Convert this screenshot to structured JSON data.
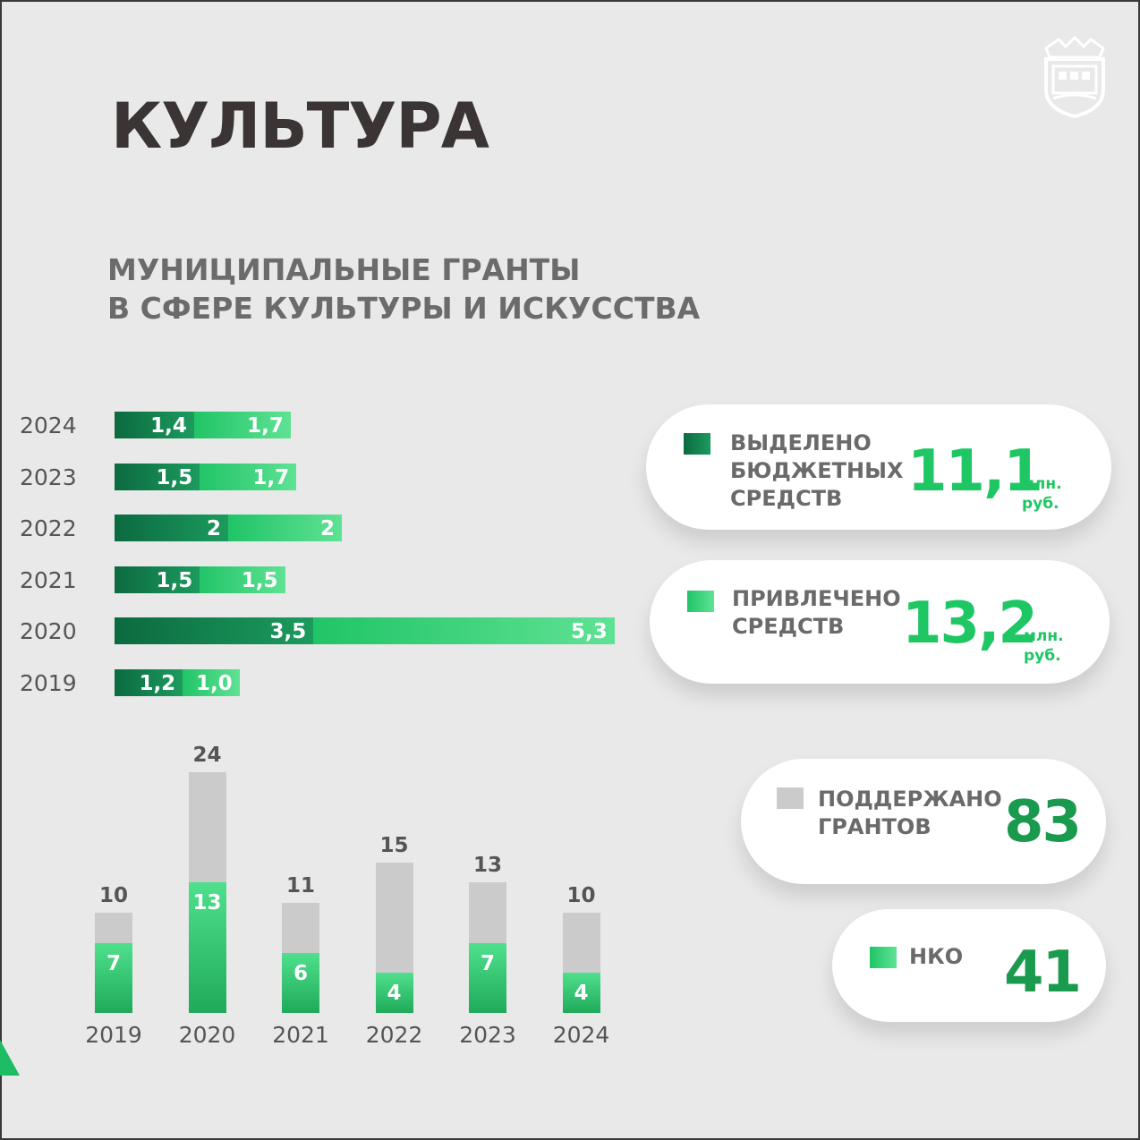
{
  "title": "КУЛЬТУРА",
  "subtitle_line1": "МУНИЦИПАЛЬНЫЕ ГРАНТЫ",
  "subtitle_line2": "В СФЕРЕ КУЛЬТУРЫ И ИСКУССТВА",
  "colors": {
    "budget": "#0b6a40",
    "attracted": "#3fd680",
    "grants": "#cbcbcb",
    "nko": "#2ec870"
  },
  "chart_data": [
    {
      "type": "bar",
      "orientation": "horizontal",
      "stacked": true,
      "categories": [
        "2024",
        "2023",
        "2022",
        "2021",
        "2020",
        "2019"
      ],
      "series": [
        {
          "values": [
            1.4,
            1.5,
            2,
            1.5,
            3.5,
            1.2
          ],
          "labels": [
            "1,4",
            "1,5",
            "2",
            "1,5",
            "3,5",
            "1,2"
          ]
        },
        {
          "values": [
            1.7,
            1.7,
            2,
            1.5,
            5.3,
            1.0
          ],
          "labels": [
            "1,7",
            "1,7",
            "2",
            "1,5",
            "5,3",
            "1,0"
          ]
        }
      ]
    },
    {
      "type": "bar",
      "orientation": "vertical",
      "categories": [
        "2019",
        "2020",
        "2021",
        "2022",
        "2023",
        "2024"
      ],
      "series": [
        {
          "values": [
            10,
            24,
            11,
            15,
            13,
            10
          ]
        },
        {
          "values": [
            7,
            13,
            6,
            4,
            7,
            4
          ]
        }
      ]
    }
  ],
  "cards": {
    "budget": {
      "label": "ВЫДЕЛЕНО\nБЮДЖЕТНЫХ\nСРЕДСТВ",
      "value": "11,1",
      "unit": "млн.\nруб."
    },
    "attracted": {
      "label": "ПРИВЛЕЧЕНО\nСРЕДСТВ",
      "value": "13,2",
      "unit": "млн.\nруб."
    },
    "grants": {
      "label": "ПОДДЕРЖАНО\nГРАНТОВ",
      "value": "83"
    },
    "nko": {
      "label": "НКО",
      "value": "41"
    }
  }
}
